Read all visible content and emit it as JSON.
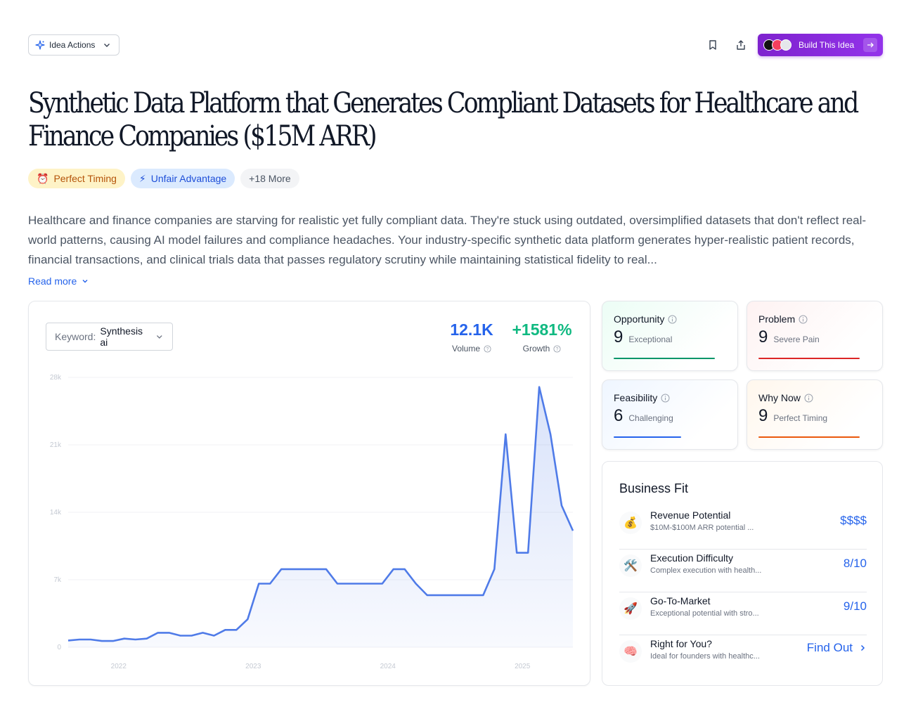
{
  "header": {
    "idea_actions_label": "Idea Actions",
    "build_label": "Build This Idea"
  },
  "title": "Synthetic Data Platform that Generates Compliant Datasets for Healthcare and Finance Companies ($15M ARR)",
  "tags": [
    {
      "icon": "⏰",
      "label": "Perfect Timing"
    },
    {
      "icon": "⚡",
      "label": "Unfair Advantage"
    },
    {
      "label": "+18 More"
    }
  ],
  "description": "Healthcare and finance companies are starving for realistic yet fully compliant data. They're stuck using outdated, oversimplified datasets that don't reflect real-world patterns, causing AI model failures and compliance headaches. Your industry-specific synthetic data platform generates hyper-realistic patient records, financial transactions, and clinical trials data that passes regulatory scrutiny while maintaining statistical fidelity to real...",
  "read_more": "Read more",
  "keyword": {
    "label": "Keyword:",
    "value": "Synthesis ai"
  },
  "stats": {
    "volume_value": "12.1K",
    "volume_label": "Volume",
    "growth_value": "+1581%",
    "growth_label": "Growth"
  },
  "chart_data": {
    "type": "area",
    "y_ticks": [
      "0",
      "7k",
      "14k",
      "21k",
      "28k"
    ],
    "ylim": [
      0,
      28000
    ],
    "x_ticks": [
      "2022",
      "2023",
      "2024",
      "2025"
    ],
    "x_tick_positions": [
      4.5,
      16.5,
      28.5,
      40.5
    ],
    "values": [
      700,
      800,
      800,
      650,
      650,
      900,
      800,
      900,
      1500,
      1500,
      1200,
      1200,
      1500,
      1200,
      1800,
      1800,
      2900,
      6600,
      6600,
      8100,
      8100,
      8100,
      8100,
      8100,
      6600,
      6600,
      6600,
      6600,
      6600,
      8100,
      8100,
      6600,
      5400,
      5400,
      5400,
      5400,
      5400,
      5400,
      8100,
      22100,
      9800,
      9800,
      27000,
      22100,
      14700,
      12100
    ],
    "color": "#4f7be8"
  },
  "metrics": [
    {
      "name": "Opportunity",
      "score": "9",
      "label": "Exceptional",
      "fraction": 0.9,
      "color": "#059669"
    },
    {
      "name": "Problem",
      "score": "9",
      "label": "Severe Pain",
      "fraction": 0.9,
      "color": "#dc2626"
    },
    {
      "name": "Feasibility",
      "score": "6",
      "label": "Challenging",
      "fraction": 0.6,
      "color": "#2563eb"
    },
    {
      "name": "Why Now",
      "score": "9",
      "label": "Perfect Timing",
      "fraction": 0.9,
      "color": "#ea580c"
    }
  ],
  "business_fit": {
    "title": "Business Fit",
    "rows": [
      {
        "icon": "💰",
        "name": "Revenue Potential",
        "sub": "$10M-$100M ARR potential ...",
        "value": "$$$$"
      },
      {
        "icon": "🛠️",
        "name": "Execution Difficulty",
        "sub": "Complex execution with health...",
        "value": "8/10"
      },
      {
        "icon": "🚀",
        "name": "Go-To-Market",
        "sub": "Exceptional potential with stro...",
        "value": "9/10"
      },
      {
        "icon": "🧠",
        "name": "Right for You?",
        "sub": "Ideal for founders with healthc...",
        "value": "Find Out"
      }
    ]
  }
}
